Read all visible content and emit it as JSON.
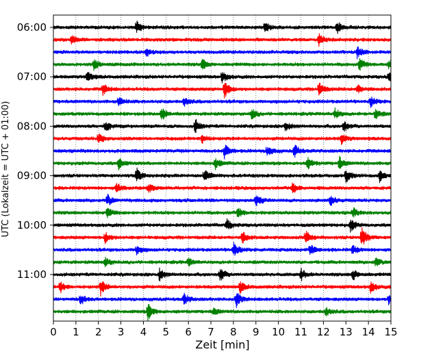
{
  "chart_data": {
    "type": "line",
    "title": "",
    "xlabel": "Zeit  [min]",
    "ylabel": "UTC (Lokalzeit = UTC + 01:00)",
    "xlim": [
      0,
      15
    ],
    "x_ticks": [
      "0",
      "1",
      "2",
      "3",
      "4",
      "5",
      "6",
      "7",
      "8",
      "9",
      "10",
      "11",
      "12",
      "13",
      "14",
      "15"
    ],
    "y_tick_labels": [
      "06:00",
      "07:00",
      "08:00",
      "09:00",
      "10:00",
      "11:00"
    ],
    "grid": "vertical dotted lines at each minute",
    "colors": [
      "#000000",
      "#ff0000",
      "#0000ff",
      "#008000"
    ],
    "series": [
      {
        "start": "06:00",
        "color": "#000000",
        "events": [
          {
            "x": 3.7,
            "amp": 0.35
          },
          {
            "x": 9.4,
            "amp": 0.3
          },
          {
            "x": 12.6,
            "amp": 0.35
          }
        ]
      },
      {
        "start": "06:15",
        "color": "#ff0000",
        "events": [
          {
            "x": 0.8,
            "amp": 0.25
          },
          {
            "x": 11.8,
            "amp": 0.3
          }
        ]
      },
      {
        "start": "06:30",
        "color": "#0000ff",
        "events": [
          {
            "x": 4.1,
            "amp": 0.25
          },
          {
            "x": 13.5,
            "amp": 0.3
          }
        ]
      },
      {
        "start": "06:45",
        "color": "#008000",
        "events": [
          {
            "x": 1.8,
            "amp": 0.3
          },
          {
            "x": 6.6,
            "amp": 0.3
          },
          {
            "x": 13.6,
            "amp": 0.35
          },
          {
            "x": 14.9,
            "amp": 0.25
          }
        ]
      },
      {
        "start": "07:00",
        "color": "#000000",
        "events": [
          {
            "x": 1.5,
            "amp": 0.3
          },
          {
            "x": 7.5,
            "amp": 0.3
          },
          {
            "x": 14.9,
            "amp": 0.25
          }
        ]
      },
      {
        "start": "07:15",
        "color": "#ff0000",
        "events": [
          {
            "x": 2.2,
            "amp": 0.3
          },
          {
            "x": 7.6,
            "amp": 0.5
          },
          {
            "x": 11.8,
            "amp": 0.4
          },
          {
            "x": 13.5,
            "amp": 0.25
          }
        ]
      },
      {
        "start": "07:30",
        "color": "#0000ff",
        "events": [
          {
            "x": 2.9,
            "amp": 0.25
          },
          {
            "x": 5.8,
            "amp": 0.25
          },
          {
            "x": 14.1,
            "amp": 0.25
          }
        ]
      },
      {
        "start": "07:45",
        "color": "#008000",
        "events": [
          {
            "x": 4.8,
            "amp": 0.4
          },
          {
            "x": 8.8,
            "amp": 0.3
          },
          {
            "x": 12.5,
            "amp": 0.3
          },
          {
            "x": 14.3,
            "amp": 0.3
          }
        ]
      },
      {
        "start": "08:00",
        "color": "#000000",
        "events": [
          {
            "x": 2.3,
            "amp": 0.3
          },
          {
            "x": 6.3,
            "amp": 0.35
          },
          {
            "x": 10.3,
            "amp": 0.3
          },
          {
            "x": 12.9,
            "amp": 0.3
          }
        ]
      },
      {
        "start": "08:15",
        "color": "#ff0000",
        "events": [
          {
            "x": 2.0,
            "amp": 0.3
          },
          {
            "x": 6.6,
            "amp": 0.25
          },
          {
            "x": 12.8,
            "amp": 0.3
          }
        ]
      },
      {
        "start": "08:30",
        "color": "#0000ff",
        "events": [
          {
            "x": 7.6,
            "amp": 0.4
          },
          {
            "x": 9.5,
            "amp": 0.3
          },
          {
            "x": 10.7,
            "amp": 0.35
          }
        ]
      },
      {
        "start": "08:45",
        "color": "#008000",
        "events": [
          {
            "x": 2.9,
            "amp": 0.3
          },
          {
            "x": 7.2,
            "amp": 0.3
          },
          {
            "x": 11.3,
            "amp": 0.3
          },
          {
            "x": 12.7,
            "amp": 0.35
          }
        ]
      },
      {
        "start": "09:00",
        "color": "#000000",
        "events": [
          {
            "x": 3.7,
            "amp": 0.4
          },
          {
            "x": 6.7,
            "amp": 0.35
          },
          {
            "x": 13.0,
            "amp": 0.35
          },
          {
            "x": 14.5,
            "amp": 0.3
          }
        ]
      },
      {
        "start": "09:15",
        "color": "#ff0000",
        "events": [
          {
            "x": 2.8,
            "amp": 0.25
          },
          {
            "x": 4.2,
            "amp": 0.25
          },
          {
            "x": 10.6,
            "amp": 0.3
          }
        ]
      },
      {
        "start": "09:30",
        "color": "#0000ff",
        "events": [
          {
            "x": 2.4,
            "amp": 0.3
          },
          {
            "x": 9.0,
            "amp": 0.35
          },
          {
            "x": 12.3,
            "amp": 0.3
          }
        ]
      },
      {
        "start": "09:45",
        "color": "#008000",
        "events": [
          {
            "x": 2.4,
            "amp": 0.25
          },
          {
            "x": 8.2,
            "amp": 0.3
          },
          {
            "x": 13.3,
            "amp": 0.25
          }
        ]
      },
      {
        "start": "10:00",
        "color": "#000000",
        "events": [
          {
            "x": 7.7,
            "amp": 0.3
          },
          {
            "x": 13.2,
            "amp": 0.35
          }
        ]
      },
      {
        "start": "10:15",
        "color": "#ff0000",
        "events": [
          {
            "x": 2.3,
            "amp": 0.3
          },
          {
            "x": 8.4,
            "amp": 0.3
          },
          {
            "x": 11.2,
            "amp": 0.4
          },
          {
            "x": 13.7,
            "amp": 0.6
          }
        ]
      },
      {
        "start": "10:30",
        "color": "#0000ff",
        "events": [
          {
            "x": 3.7,
            "amp": 0.25
          },
          {
            "x": 8.0,
            "amp": 0.4
          },
          {
            "x": 11.4,
            "amp": 0.3
          },
          {
            "x": 13.3,
            "amp": 0.25
          }
        ]
      },
      {
        "start": "10:45",
        "color": "#008000",
        "events": [
          {
            "x": 2.3,
            "amp": 0.25
          },
          {
            "x": 6.0,
            "amp": 0.2
          },
          {
            "x": 14.3,
            "amp": 0.25
          }
        ]
      },
      {
        "start": "11:00",
        "color": "#000000",
        "events": [
          {
            "x": 4.7,
            "amp": 0.35
          },
          {
            "x": 7.4,
            "amp": 0.4
          },
          {
            "x": 11.0,
            "amp": 0.3
          },
          {
            "x": 13.3,
            "amp": 0.3
          }
        ]
      },
      {
        "start": "11:15",
        "color": "#ff0000",
        "events": [
          {
            "x": 0.3,
            "amp": 0.3
          },
          {
            "x": 2.1,
            "amp": 0.4
          },
          {
            "x": 8.3,
            "amp": 0.3
          },
          {
            "x": 14.1,
            "amp": 0.3
          }
        ]
      },
      {
        "start": "11:30",
        "color": "#0000ff",
        "events": [
          {
            "x": 1.2,
            "amp": 0.3
          },
          {
            "x": 5.8,
            "amp": 0.3
          },
          {
            "x": 8.1,
            "amp": 0.45
          },
          {
            "x": 14.9,
            "amp": 0.25
          }
        ]
      },
      {
        "start": "11:45",
        "color": "#008000",
        "events": [
          {
            "x": 4.2,
            "amp": 0.45
          },
          {
            "x": 7.1,
            "amp": 0.2
          },
          {
            "x": 12.1,
            "amp": 0.25
          }
        ]
      }
    ]
  }
}
